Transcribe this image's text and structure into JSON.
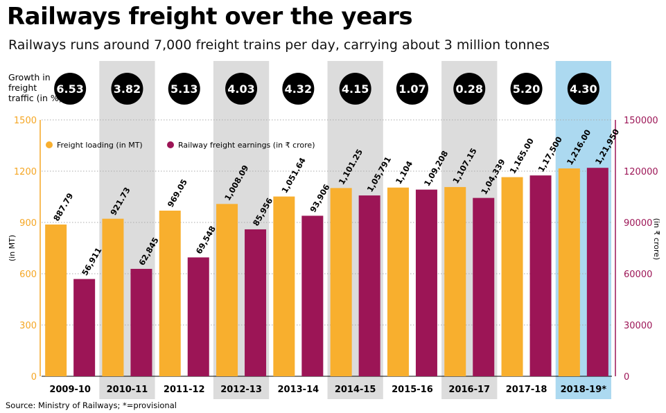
{
  "title": "Railways freight over the years",
  "subtitle": "Railways runs around 7,000 freight trains per day, carrying about 3 million tonnes",
  "growth_label": "Growth in freight traffic (in %)",
  "source": "Source: Ministry of Railways; *=provisional",
  "colors": {
    "loading": "#F8AF2E",
    "earnings": "#9C1556",
    "shade": "#DCDCDC",
    "highlight": "#ACD9F0",
    "left_axis": "#F5A623",
    "right_axis": "#9C1556",
    "grid": "#AAAAAA"
  },
  "chart_data": {
    "type": "bar",
    "categories": [
      "2009-10",
      "2010-11",
      "2011-12",
      "2012-13",
      "2013-14",
      "2014-15",
      "2015-16",
      "2016-17",
      "2017-18",
      "2018-19*"
    ],
    "growth": [
      "6.53",
      "3.82",
      "5.13",
      "4.03",
      "4.32",
      "4.15",
      "1.07",
      "0.28",
      "5.20",
      "4.30"
    ],
    "series": [
      {
        "name": "Freight loading (in MT)",
        "axis": "left",
        "values": [
          887.79,
          921.73,
          969.05,
          1008.09,
          1051.64,
          1101.25,
          1104,
          1107.15,
          1165.0,
          1216.0
        ],
        "labels": [
          "887.79",
          "921.73",
          "969.05",
          "1,008.09",
          "1,051.64",
          "1,101.25",
          "1,104",
          "1,107.15",
          "1,165.00",
          "1,216.00"
        ]
      },
      {
        "name": "Railway freight earnings (in ₹ crore)",
        "axis": "right",
        "values": [
          56911,
          62845,
          69548,
          85956,
          93906,
          105791,
          109208,
          104339,
          117500,
          121950
        ],
        "labels": [
          "56,911",
          "62,845",
          "69,548",
          "85,956",
          "93,906",
          "1,05,791",
          "1,09,208",
          "1,04,339",
          "1,17,500",
          "1,21,950"
        ]
      }
    ],
    "ylabel_left": "(in MT)",
    "ylabel_right": "(in ₹ crore)",
    "ylim_left": [
      0,
      1500
    ],
    "ylim_right": [
      0,
      150000
    ],
    "yticks_left": [
      0,
      300,
      600,
      900,
      1200,
      1500
    ],
    "yticks_right": [
      0,
      30000,
      60000,
      90000,
      120000,
      150000
    ],
    "shaded_categories": [
      "2010-11",
      "2012-13",
      "2014-15",
      "2016-17"
    ],
    "highlighted_category": "2018-19*",
    "grid": true,
    "legend": "top-left"
  }
}
